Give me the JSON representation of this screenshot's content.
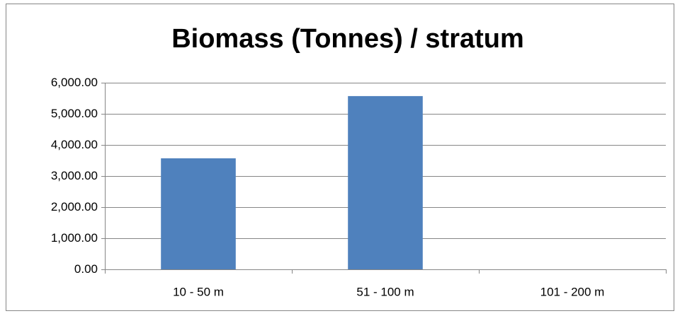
{
  "chart_data": {
    "type": "bar",
    "title": "Biomass (Tonnes) / stratum",
    "categories": [
      "10 - 50 m",
      "51 - 100 m",
      "101 - 200 m"
    ],
    "values": [
      3570,
      5570,
      0
    ],
    "color": "#4f81bd",
    "ylim": [
      0,
      6000
    ],
    "yticks": [
      {
        "value": 0,
        "label": "0.00"
      },
      {
        "value": 1000,
        "label": "1,000.00"
      },
      {
        "value": 2000,
        "label": "2,000.00"
      },
      {
        "value": 3000,
        "label": "3,000.00"
      },
      {
        "value": 4000,
        "label": "4,000.00"
      },
      {
        "value": 5000,
        "label": "5,000.00"
      },
      {
        "value": 6000,
        "label": "6,000.00"
      }
    ],
    "grid": true
  }
}
